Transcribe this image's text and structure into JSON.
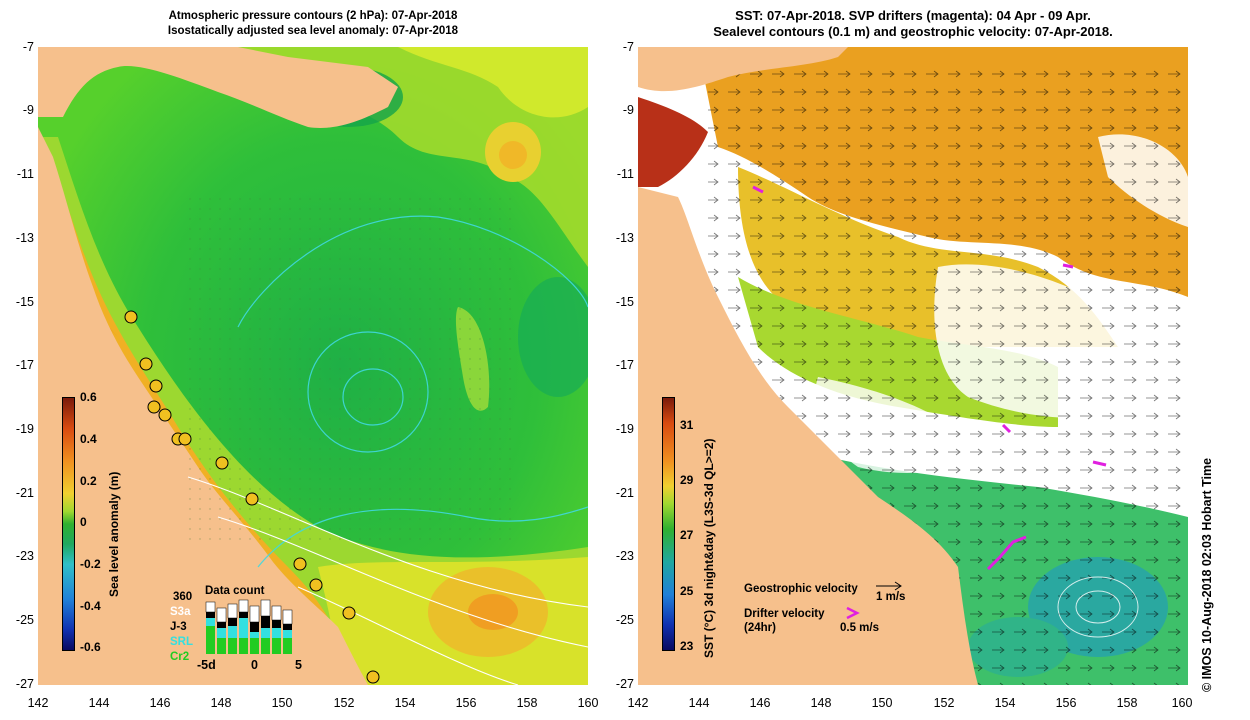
{
  "left": {
    "title_line1": "Atmospheric pressure contours (2 hPa): 07-Apr-2018",
    "title_line2": "Isostatically adjusted sea level anomaly: 07-Apr-2018",
    "colorbar": {
      "label": "Sea level anomaly (m)",
      "ticks": [
        "0.6",
        "0.4",
        "0.2",
        "0",
        "-0.2",
        "-0.4",
        "-0.6"
      ]
    },
    "data_count": {
      "title": "Data count",
      "max_label": "360",
      "series": [
        "S3a",
        "J-3",
        "SRL",
        "Cr2"
      ],
      "series_colors": [
        "#ffffff",
        "#000000",
        "#33e0e0",
        "#22cc22"
      ],
      "x_labels": [
        "-5d",
        "0",
        "5"
      ]
    }
  },
  "right": {
    "title_line1": "SST: 07-Apr-2018. SVP drifters (magenta): 04 Apr - 09 Apr.",
    "title_line2": "Sealevel contours (0.1 m) and geostrophic velocity: 07-Apr-2018.",
    "colorbar": {
      "label": "SST (°C) 3d night&day (L3S-3d QL>=2)",
      "ticks": [
        "31",
        "29",
        "27",
        "25",
        "23"
      ]
    },
    "geo_velocity_label": "Geostrophic velocity",
    "geo_velocity_scale": "1 m/s",
    "drifter_label_1": "Drifter velocity",
    "drifter_label_2": "(24hr)",
    "drifter_scale": "0.5 m/s"
  },
  "axes": {
    "lat_ticks": [
      "-7",
      "-9",
      "-11",
      "-13",
      "-15",
      "-17",
      "-19",
      "-21",
      "-23",
      "-25",
      "-27"
    ],
    "lon_ticks": [
      "142",
      "144",
      "146",
      "148",
      "150",
      "152",
      "154",
      "156",
      "158",
      "160"
    ]
  },
  "credit": "© IMOS 10-Aug-2018 02:03 Hobart Time",
  "colors": {
    "land": "#f6c08c",
    "sla_green": "#33c833",
    "sla_yellow": "#c8e632",
    "sla_orange": "#f0a020",
    "drifter": "#e020e0",
    "contour": "#40d8e0"
  }
}
